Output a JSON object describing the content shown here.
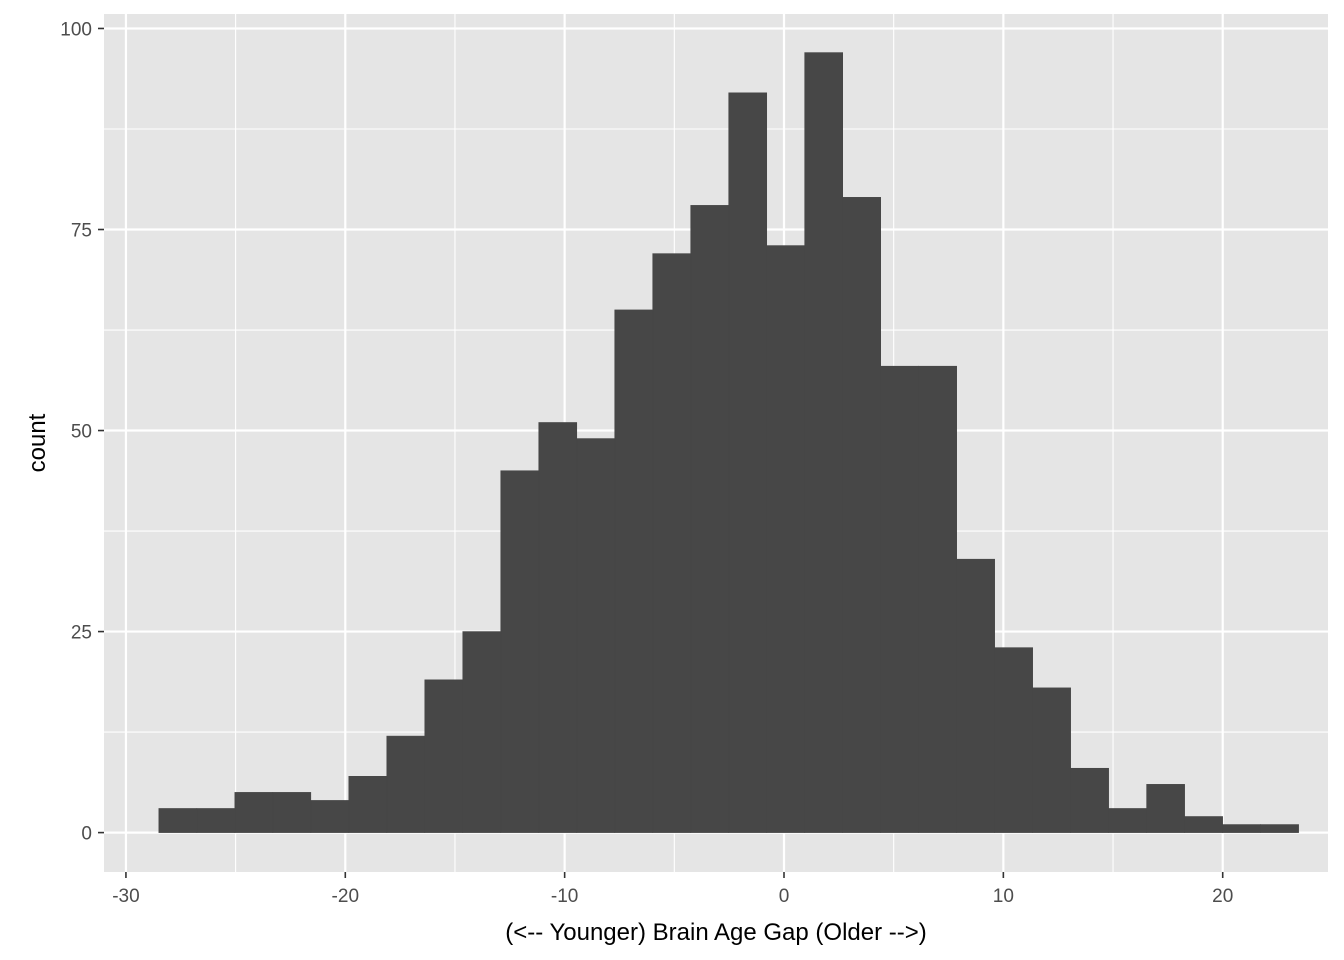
{
  "colors": {
    "panel_background": "#e5e5e5",
    "grid": "#ffffff",
    "bar_fill": "#474747",
    "tick": "#333333"
  },
  "chart_data": {
    "type": "bar",
    "subtype": "histogram",
    "title": "",
    "xlabel": "(<-- Younger) Brain Age Gap (Older -->)",
    "ylabel": "count",
    "bin_width": 1.732,
    "bin_start": -28.5,
    "counts": [
      3,
      3,
      5,
      5,
      4,
      7,
      12,
      19,
      25,
      45,
      51,
      49,
      65,
      72,
      78,
      92,
      73,
      97,
      79,
      58,
      58,
      34,
      23,
      18,
      8,
      3,
      6,
      2,
      1,
      1
    ],
    "xlim": [
      -31.0,
      24.8
    ],
    "ylim": [
      -4.9,
      101.8
    ],
    "x_ticks": [
      -30,
      -20,
      -10,
      0,
      10,
      20
    ],
    "x_tick_labels": [
      "-30",
      "-20",
      "-10",
      "0",
      "10",
      "20"
    ],
    "y_ticks": [
      0,
      25,
      50,
      75,
      100
    ],
    "y_tick_labels": [
      "0",
      "25",
      "50",
      "75",
      "100"
    ],
    "x_minor_ticks": [
      -25,
      -15,
      -5,
      5,
      15
    ],
    "y_minor_ticks": [
      12.5,
      37.5,
      62.5,
      87.5
    ],
    "grid": true,
    "legend": "none"
  }
}
